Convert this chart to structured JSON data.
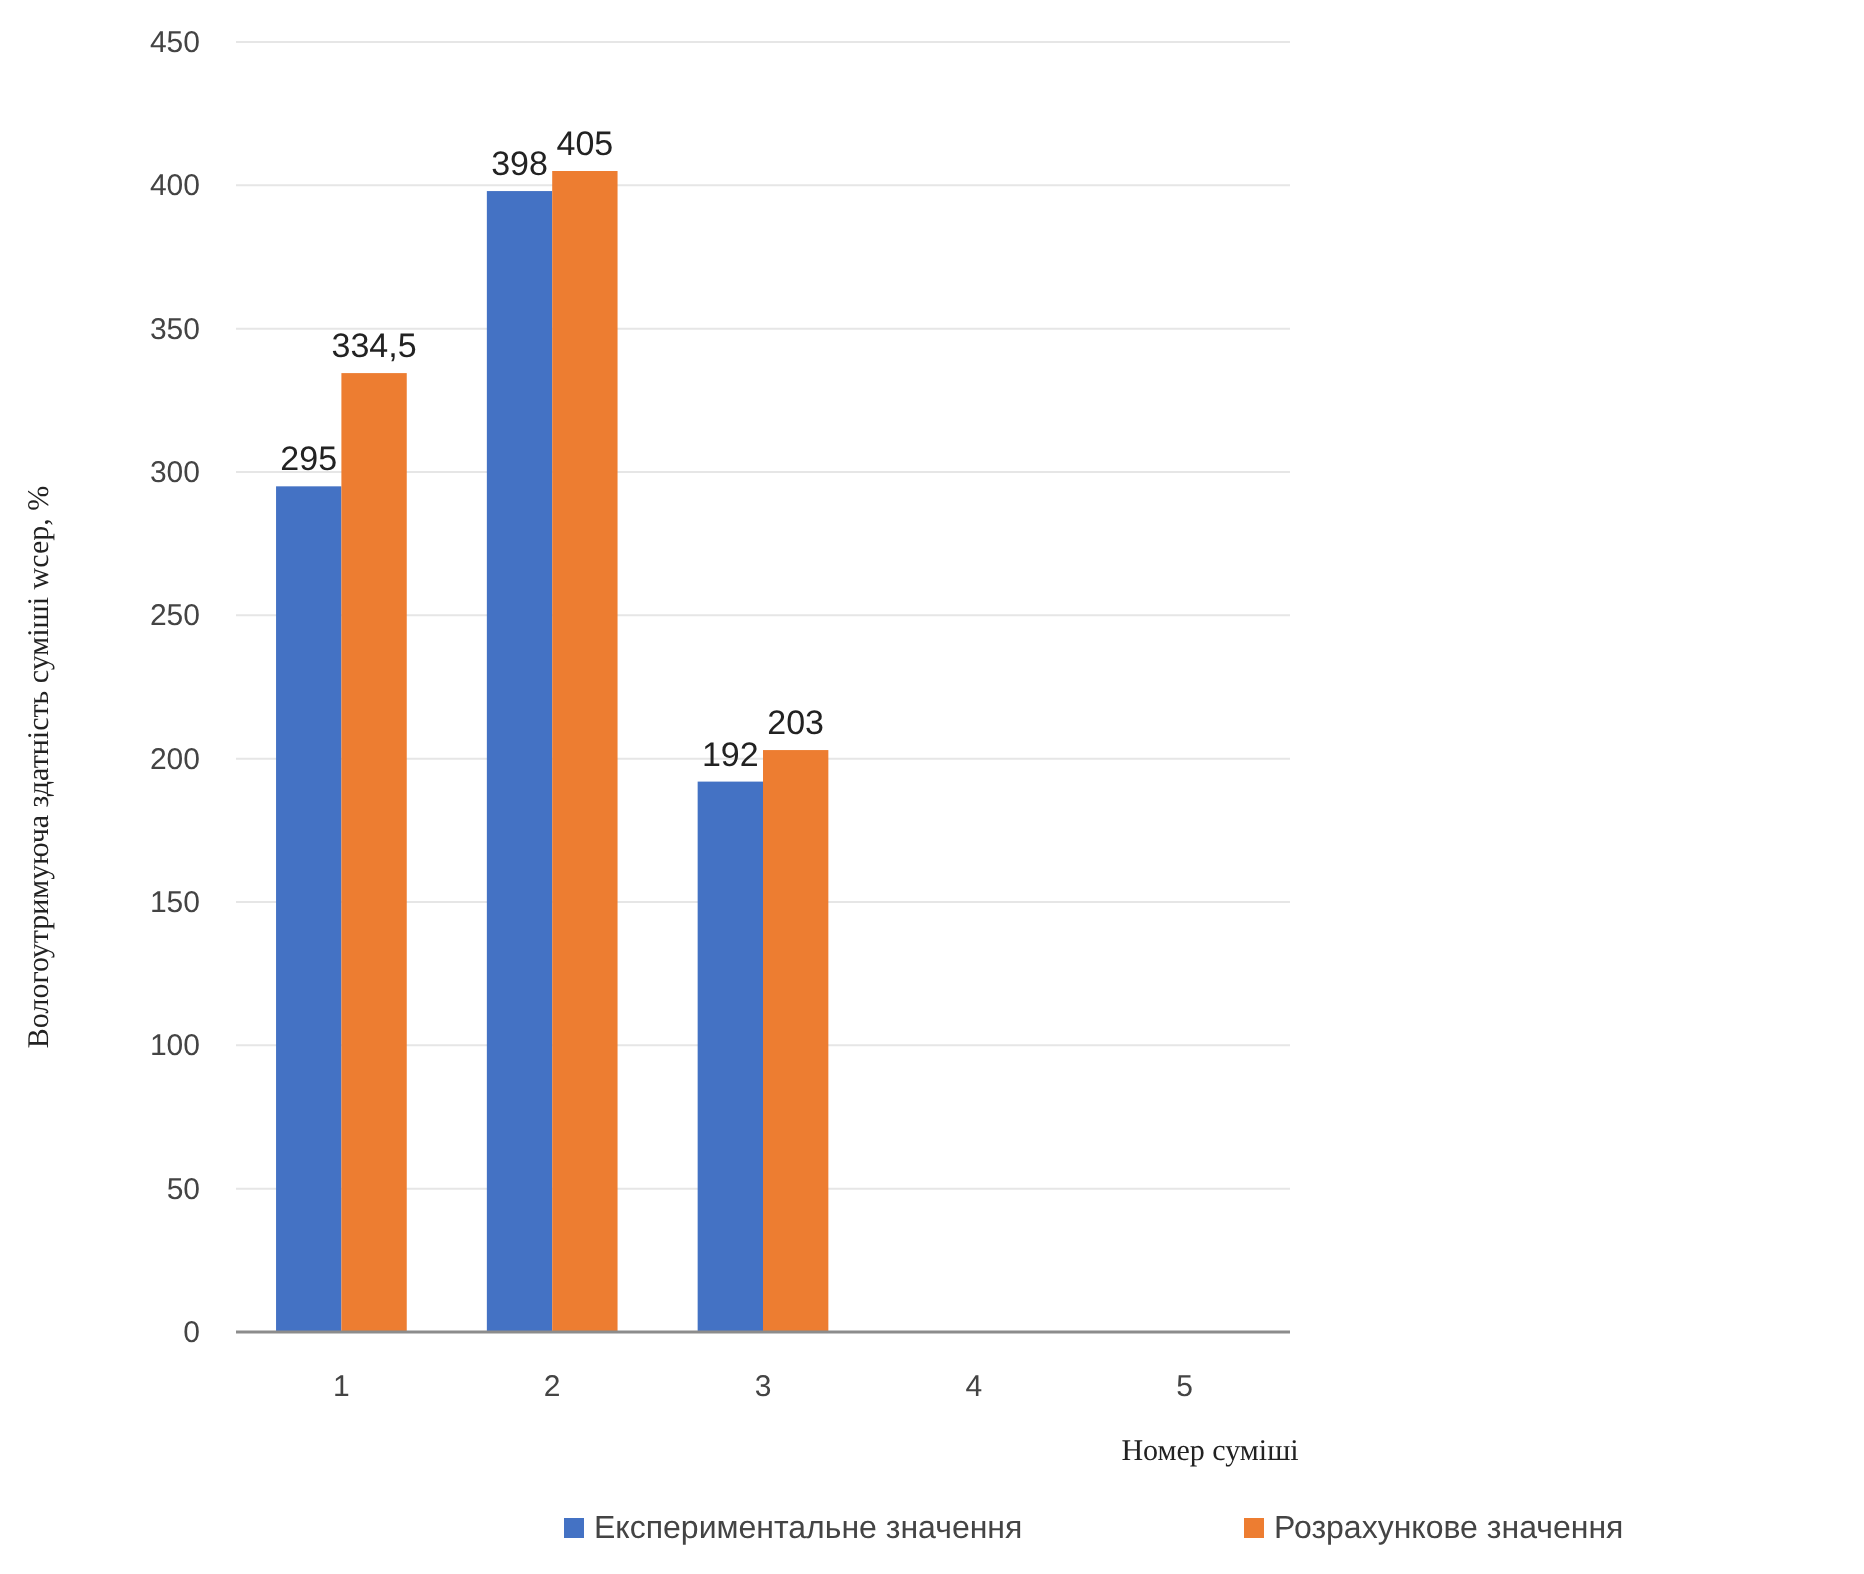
{
  "chart_data": {
    "type": "bar",
    "xlabel": "Номер суміші",
    "ylabel": "Вологоутримуюча здатність суміші wсер, %",
    "categories": [
      "1",
      "2",
      "3",
      "4",
      "5"
    ],
    "series": [
      {
        "name": "Експериментальне значення",
        "color": "#4472c4",
        "values": [
          295,
          398,
          192,
          null,
          null
        ],
        "value_labels": [
          "295",
          "398",
          "192",
          null,
          null
        ]
      },
      {
        "name": "Розрахункове значення",
        "color": "#ed7d31",
        "values": [
          334.5,
          405,
          203,
          null,
          null
        ],
        "value_labels": [
          "334,5",
          "405",
          "203",
          null,
          null
        ]
      }
    ],
    "ylim": [
      0,
      450
    ],
    "yticks": [
      0,
      50,
      100,
      150,
      200,
      250,
      300,
      350,
      400,
      450
    ],
    "grid": "y",
    "legend": "bottom right"
  }
}
